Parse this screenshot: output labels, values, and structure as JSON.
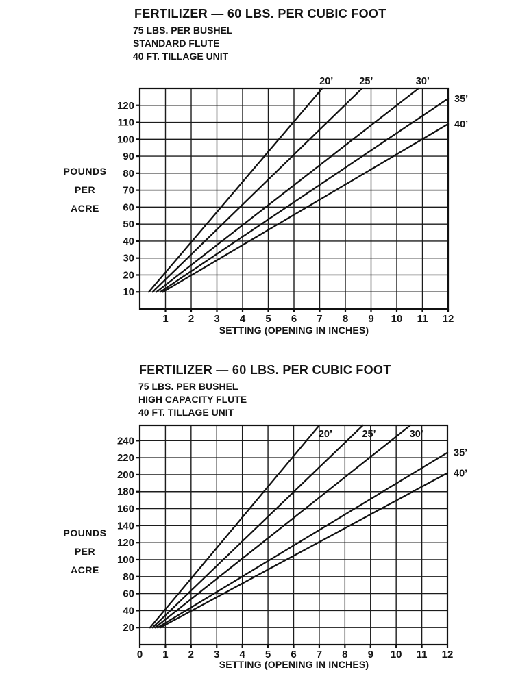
{
  "page": {
    "background": "#ffffff",
    "ink": "#141414"
  },
  "charts": [
    {
      "title": "FERTILIZER — 60 LBS. PER CUBIC FOOT",
      "subtitles": [
        "75 LBS. PER BUSHEL",
        "STANDARD FLUTE",
        "40 FT. TILLAGE UNIT"
      ],
      "y_axis_label_lines": [
        "POUNDS",
        "PER",
        "ACRE"
      ],
      "x_axis_label": "SETTING (OPENING IN INCHES)",
      "chart_data": {
        "type": "line",
        "title": "FERTILIZER — 60 LBS. PER CUBIC FOOT (STANDARD FLUTE, 75 LBS. PER BUSHEL, 40 FT. TILLAGE UNIT)",
        "xlabel": "SETTING (OPENING IN INCHES)",
        "ylabel": "POUNDS PER ACRE",
        "xlim": [
          0,
          12
        ],
        "ylim": [
          0,
          130
        ],
        "x_ticks": [
          1,
          2,
          3,
          4,
          5,
          6,
          7,
          8,
          9,
          10,
          11,
          12
        ],
        "y_ticks": [
          10,
          20,
          30,
          40,
          50,
          60,
          70,
          80,
          90,
          100,
          110,
          120
        ],
        "grid": true,
        "legend_position": "line-end-labels",
        "series": [
          {
            "name": "20’",
            "width_ft": 20,
            "points": [
              [
                0.35,
                10
              ],
              [
                7.1,
                130
              ]
            ],
            "approx_lbs_per_acre_per_inch": 17.8,
            "label_side": "above-top"
          },
          {
            "name": "25’",
            "width_ft": 25,
            "points": [
              [
                0.5,
                10
              ],
              [
                8.65,
                130
              ]
            ],
            "approx_lbs_per_acre_per_inch": 14.7,
            "label_side": "above-top"
          },
          {
            "name": "30’",
            "width_ft": 30,
            "points": [
              [
                0.65,
                10
              ],
              [
                10.85,
                130
              ]
            ],
            "approx_lbs_per_acre_per_inch": 11.8,
            "label_side": "above-top"
          },
          {
            "name": "35’",
            "width_ft": 35,
            "points": [
              [
                0.8,
                10
              ],
              [
                12,
                124
              ]
            ],
            "approx_lbs_per_acre_per_inch": 10.2,
            "label_side": "right"
          },
          {
            "name": "40’",
            "width_ft": 40,
            "points": [
              [
                0.9,
                10
              ],
              [
                12,
                109
              ]
            ],
            "approx_lbs_per_acre_per_inch": 8.9,
            "label_side": "right"
          }
        ]
      }
    },
    {
      "title": "FERTILIZER — 60 LBS. PER CUBIC FOOT",
      "subtitles": [
        "75 LBS. PER BUSHEL",
        "HIGH CAPACITY FLUTE",
        "40 FT. TILLAGE UNIT"
      ],
      "y_axis_label_lines": [
        "POUNDS",
        "PER",
        "ACRE"
      ],
      "x_axis_label": "SETTING (OPENING IN INCHES)",
      "chart_data": {
        "type": "line",
        "title": "FERTILIZER — 60 LBS. PER CUBIC FOOT (HIGH CAPACITY FLUTE, 75 LBS. PER BUSHEL, 40 FT. TILLAGE UNIT)",
        "xlabel": "SETTING (OPENING IN INCHES)",
        "ylabel": "POUNDS PER ACRE",
        "xlim": [
          0,
          12
        ],
        "ylim": [
          0,
          258
        ],
        "x_ticks": [
          0,
          1,
          2,
          3,
          4,
          5,
          6,
          7,
          8,
          9,
          10,
          11,
          12
        ],
        "y_ticks": [
          20,
          40,
          60,
          80,
          100,
          120,
          140,
          160,
          180,
          200,
          220,
          240
        ],
        "grid": true,
        "legend_position": "line-end-labels",
        "series": [
          {
            "name": "20’",
            "width_ft": 20,
            "points": [
              [
                0.4,
                20
              ],
              [
                7.0,
                258
              ]
            ],
            "approx_lbs_per_acre_per_inch": 36.1,
            "label_side": "below-top"
          },
          {
            "name": "25’",
            "width_ft": 25,
            "points": [
              [
                0.5,
                20
              ],
              [
                8.7,
                258
              ]
            ],
            "approx_lbs_per_acre_per_inch": 29.0,
            "label_side": "below-top"
          },
          {
            "name": "30’",
            "width_ft": 30,
            "points": [
              [
                0.6,
                20
              ],
              [
                10.55,
                258
              ]
            ],
            "approx_lbs_per_acre_per_inch": 23.9,
            "label_side": "below-top"
          },
          {
            "name": "35’",
            "width_ft": 35,
            "points": [
              [
                0.7,
                20
              ],
              [
                12,
                226
              ]
            ],
            "approx_lbs_per_acre_per_inch": 18.2,
            "label_side": "right"
          },
          {
            "name": "40’",
            "width_ft": 40,
            "points": [
              [
                0.8,
                20
              ],
              [
                12,
                202
              ]
            ],
            "approx_lbs_per_acre_per_inch": 16.3,
            "label_side": "right"
          }
        ]
      }
    }
  ]
}
